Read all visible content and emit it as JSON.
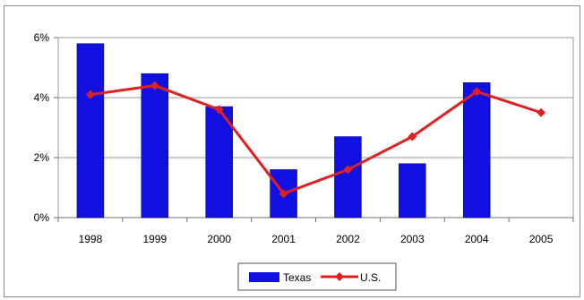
{
  "chart_data": {
    "type": "bar",
    "title": "",
    "xlabel": "",
    "ylabel": "",
    "categories": [
      "1998",
      "1999",
      "2000",
      "2001",
      "2002",
      "2003",
      "2004",
      "2005"
    ],
    "ylim": [
      0,
      6
    ],
    "yticks": [
      "0%",
      "2%",
      "4%",
      "6%"
    ],
    "grid": true,
    "legend": "bottom",
    "series": [
      {
        "name": "Texas",
        "type": "bar",
        "color": "#1010e0",
        "values": [
          5.8,
          4.8,
          3.7,
          1.6,
          2.7,
          1.8,
          4.5,
          null
        ]
      },
      {
        "name": "U.S.",
        "type": "line",
        "color": "#e02020",
        "values": [
          4.1,
          4.4,
          3.6,
          0.8,
          1.6,
          2.7,
          4.2,
          3.5
        ]
      }
    ]
  }
}
